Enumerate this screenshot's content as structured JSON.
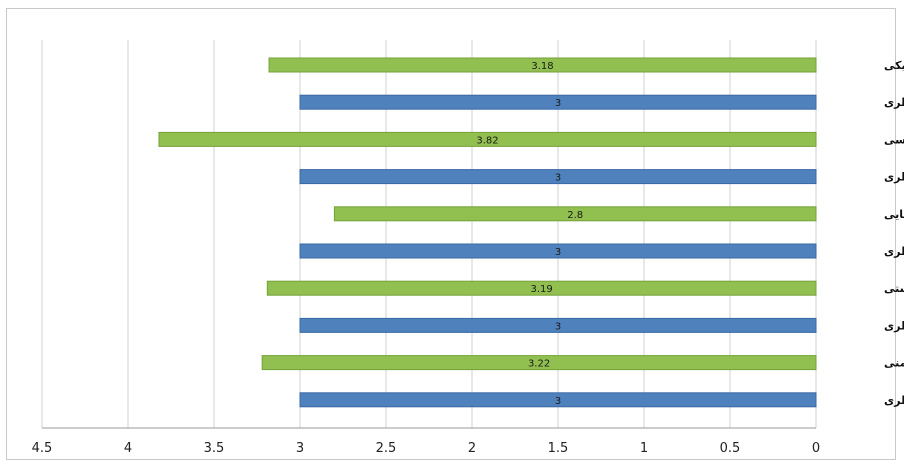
{
  "chart_data": {
    "type": "bar",
    "orientation": "horizontal",
    "x_axis_reversed": true,
    "xlim": [
      0,
      4.5
    ],
    "x_ticks": [
      "0",
      "0.5",
      "1",
      "1.5",
      "2",
      "2.5",
      "3",
      "3.5",
      "4",
      "4.5"
    ],
    "grid": true,
    "categories": [
      "ایمنی فیزیکی",
      "میانه نظری",
      "ایمنی دسترسی",
      "میانه نظری",
      "ایمنی روشنایی",
      "میانه نظری",
      "ایمنی بهداشتی",
      "میانه نظری",
      "احساس ایمنی",
      "میانه نظری"
    ],
    "values": [
      3.18,
      3,
      3.82,
      3,
      2.8,
      3,
      3.19,
      3,
      3.22,
      3
    ],
    "data_labels": [
      "3.18",
      "3",
      "3.82",
      "3",
      "2.8",
      "3",
      "3.19",
      "3",
      "3.22",
      "3"
    ],
    "colors": {
      "measured": "#92c050",
      "measured_edge": "#76a03a",
      "theoretical": "#4f81bd",
      "theoretical_edge": "#3a6aa6",
      "grid": "#d0d0d0"
    }
  }
}
